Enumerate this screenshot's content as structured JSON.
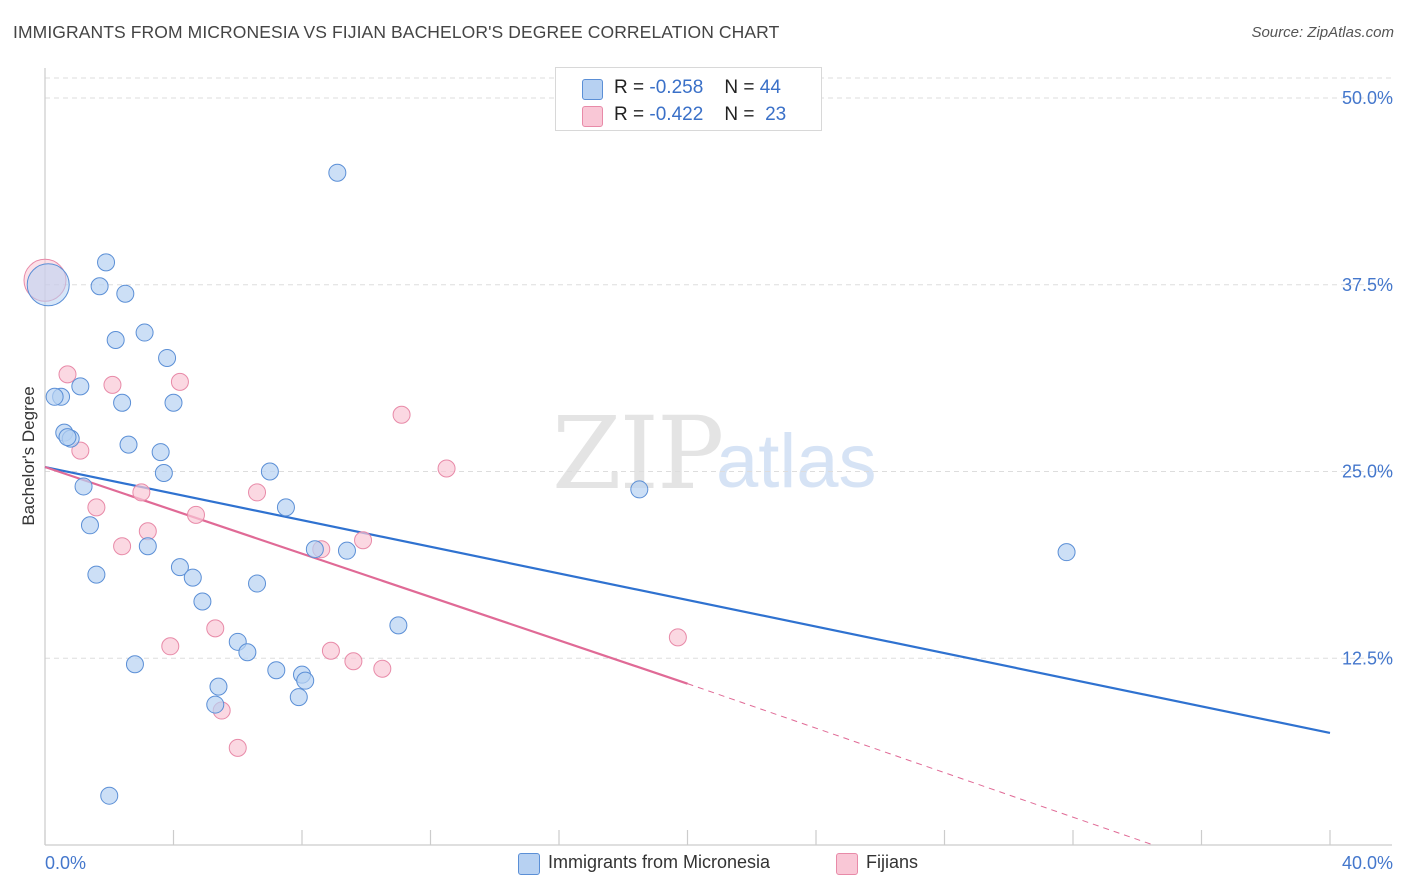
{
  "header": {
    "title": "IMMIGRANTS FROM MICRONESIA VS FIJIAN BACHELOR'S DEGREE CORRELATION CHART",
    "source": "Source: ZipAtlas.com"
  },
  "watermark": {
    "zip": "ZIP",
    "atlas": "atlas"
  },
  "legend": {
    "rows": [
      {
        "r_label": "R =",
        "r_value": "-0.258",
        "n_label": "N =",
        "n_value": "44",
        "color": "#a9c8f0"
      },
      {
        "r_label": "R =",
        "r_value": "-0.422",
        "n_label": "N =",
        "n_value": "23",
        "color": "#f6b9cb"
      }
    ]
  },
  "bottom_legend": {
    "series1": "Immigrants from Micronesia",
    "series2": "Fijians"
  },
  "chart_data": {
    "type": "scatter",
    "title": "IMMIGRANTS FROM MICRONESIA VS FIJIAN BACHELOR'S DEGREE CORRELATION CHART",
    "xlabel": "",
    "ylabel": "Bachelor's Degree",
    "xlim": [
      0,
      40
    ],
    "ylim": [
      0,
      50
    ],
    "x_tick_labels": [
      "0.0%",
      "40.0%"
    ],
    "y_ticks": [
      12.5,
      25.0,
      37.5,
      50.0
    ],
    "y_tick_labels": [
      "12.5%",
      "25.0%",
      "37.5%",
      "50.0%"
    ],
    "grid": true,
    "colors": {
      "blue_fill": "#b7d1f2",
      "blue_stroke": "#5b8fd6",
      "blue_line": "#2f72d0",
      "pink_fill": "#f9c7d6",
      "pink_stroke": "#e88aa8",
      "pink_line": "#e06a96"
    },
    "series": [
      {
        "name": "Immigrants from Micronesia",
        "r": -0.258,
        "n": 44,
        "trend": {
          "x0": 0,
          "y0": 25.3,
          "x1": 40,
          "y1": 7.5
        },
        "points": [
          [
            0.1,
            37.5
          ],
          [
            1.9,
            39.0
          ],
          [
            1.7,
            37.4
          ],
          [
            2.5,
            36.9
          ],
          [
            9.1,
            45.0
          ],
          [
            3.1,
            34.3
          ],
          [
            2.2,
            33.8
          ],
          [
            3.8,
            32.6
          ],
          [
            0.5,
            30.0
          ],
          [
            1.1,
            30.7
          ],
          [
            2.4,
            29.6
          ],
          [
            4.0,
            29.6
          ],
          [
            0.6,
            27.6
          ],
          [
            0.8,
            27.2
          ],
          [
            2.6,
            26.8
          ],
          [
            3.6,
            26.3
          ],
          [
            3.7,
            24.9
          ],
          [
            7.0,
            25.0
          ],
          [
            1.2,
            24.0
          ],
          [
            18.5,
            23.8
          ],
          [
            7.5,
            22.6
          ],
          [
            1.4,
            21.4
          ],
          [
            3.2,
            20.0
          ],
          [
            8.4,
            19.8
          ],
          [
            9.4,
            19.7
          ],
          [
            31.8,
            19.6
          ],
          [
            4.2,
            18.6
          ],
          [
            1.6,
            18.1
          ],
          [
            4.6,
            17.9
          ],
          [
            6.6,
            17.5
          ],
          [
            4.9,
            16.3
          ],
          [
            11.0,
            14.7
          ],
          [
            6.0,
            13.6
          ],
          [
            6.3,
            12.9
          ],
          [
            2.8,
            12.1
          ],
          [
            7.2,
            11.7
          ],
          [
            8.0,
            11.4
          ],
          [
            8.1,
            11.0
          ],
          [
            5.4,
            10.6
          ],
          [
            7.9,
            9.9
          ],
          [
            5.3,
            9.4
          ],
          [
            2.0,
            3.3
          ],
          [
            0.3,
            30.0
          ],
          [
            0.7,
            27.3
          ]
        ]
      },
      {
        "name": "Fijians",
        "r": -0.422,
        "n": 23,
        "trend": {
          "x0": 0,
          "y0": 25.3,
          "x1": 20,
          "y1": 10.8,
          "dash_x1": 34.5,
          "dash_y1": 0
        },
        "points": [
          [
            0.0,
            37.8
          ],
          [
            0.7,
            31.5
          ],
          [
            2.1,
            30.8
          ],
          [
            4.2,
            31.0
          ],
          [
            11.1,
            28.8
          ],
          [
            1.1,
            26.4
          ],
          [
            12.5,
            25.2
          ],
          [
            3.0,
            23.6
          ],
          [
            6.6,
            23.6
          ],
          [
            1.6,
            22.6
          ],
          [
            4.7,
            22.1
          ],
          [
            3.2,
            21.0
          ],
          [
            2.4,
            20.0
          ],
          [
            8.6,
            19.8
          ],
          [
            9.9,
            20.4
          ],
          [
            19.7,
            13.9
          ],
          [
            3.9,
            13.3
          ],
          [
            5.3,
            14.5
          ],
          [
            8.9,
            13.0
          ],
          [
            9.6,
            12.3
          ],
          [
            10.5,
            11.8
          ],
          [
            5.5,
            9.0
          ],
          [
            6.0,
            6.5
          ]
        ]
      }
    ]
  }
}
